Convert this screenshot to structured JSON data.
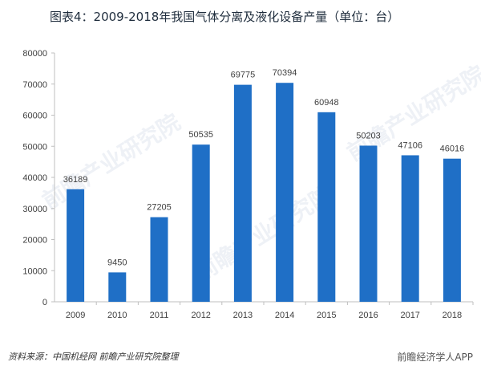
{
  "title": "图表4：2009-2018年我国气体分离及液化设备产量（单位：台）",
  "source": "资料来源：中国机经网 前瞻产业研究院整理",
  "watermarks": [
    "前瞻产业研究院",
    "前瞻产业研究院",
    "前瞻产业研究院"
  ],
  "wechat_label": "前瞻经济学人APP",
  "colors": {
    "bar": "#1f6fc6",
    "axis": "#bfbfbf",
    "text": "#404040"
  },
  "chart_data": {
    "type": "bar",
    "title": "图表4：2009-2018年我国气体分离及液化设备产量（单位：台）",
    "categories": [
      "2009",
      "2010",
      "2011",
      "2012",
      "2013",
      "2014",
      "2015",
      "2016",
      "2017",
      "2018"
    ],
    "values": [
      36189,
      9450,
      27205,
      50535,
      69775,
      70394,
      60948,
      50203,
      47106,
      46016
    ],
    "ylim": [
      0,
      80000
    ],
    "yticks": [
      0,
      10000,
      20000,
      30000,
      40000,
      50000,
      60000,
      70000,
      80000
    ],
    "xlabel": "",
    "ylabel": "",
    "grid": false,
    "legend": "none"
  }
}
